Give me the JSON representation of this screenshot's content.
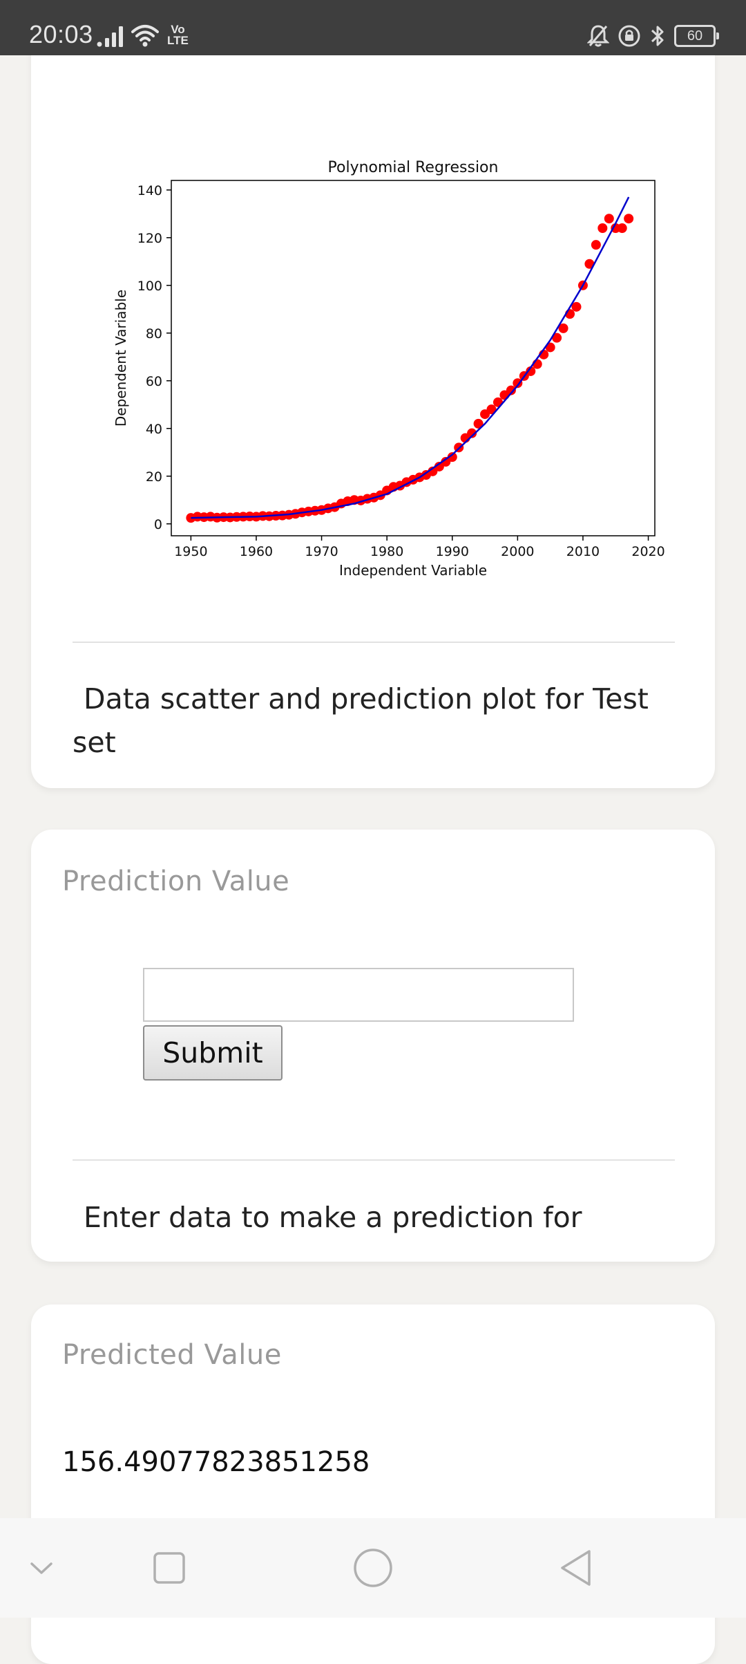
{
  "status_bar": {
    "time": "20:03",
    "volte_line1": "Vo",
    "volte_line2": "LTE",
    "battery": "60"
  },
  "chart_card": {
    "caption": "Data scatter and prediction plot for Test set"
  },
  "chart_data": {
    "type": "scatter",
    "title": "Polynomial Regression",
    "xlabel": "Independent Variable",
    "ylabel": "Dependent Variable",
    "xlim": [
      1947,
      2021
    ],
    "ylim": [
      -5,
      144
    ],
    "xticks": [
      1950,
      1960,
      1970,
      1980,
      1990,
      2000,
      2010,
      2020
    ],
    "yticks": [
      0,
      20,
      40,
      60,
      80,
      100,
      120,
      140
    ],
    "grid": false,
    "series": [
      {
        "type": "scatter",
        "color": "#ff0000",
        "x": [
          1950,
          1951,
          1952,
          1953,
          1954,
          1955,
          1956,
          1957,
          1958,
          1959,
          1960,
          1961,
          1962,
          1963,
          1964,
          1965,
          1966,
          1967,
          1968,
          1969,
          1970,
          1971,
          1972,
          1973,
          1974,
          1975,
          1976,
          1977,
          1978,
          1979,
          1980,
          1981,
          1982,
          1983,
          1984,
          1985,
          1986,
          1987,
          1988,
          1989,
          1990,
          1991,
          1992,
          1993,
          1994,
          1995,
          1996,
          1997,
          1998,
          1999,
          2000,
          2001,
          2002,
          2003,
          2004,
          2005,
          2006,
          2007,
          2008,
          2009,
          2010,
          2011,
          2012,
          2013,
          2014,
          2015,
          2016,
          2017
        ],
        "y": [
          2.5,
          3,
          2.8,
          3,
          2.6,
          2.8,
          2.7,
          2.9,
          3,
          3.1,
          3,
          3.3,
          3.2,
          3.4,
          3.5,
          3.8,
          4.2,
          4.8,
          5.2,
          5.5,
          5.8,
          6.5,
          7,
          8.5,
          9.5,
          10,
          9.8,
          10.5,
          11,
          12,
          14,
          15.5,
          16,
          17.5,
          18.5,
          19.5,
          20.5,
          22,
          24,
          26,
          28,
          32,
          36,
          38,
          42,
          46,
          48,
          51,
          54,
          56,
          59,
          62,
          64,
          67,
          71,
          74,
          78,
          82,
          88,
          91,
          100,
          109,
          117,
          124,
          128,
          124,
          124,
          128
        ]
      },
      {
        "type": "line",
        "color": "#0000cc",
        "x": [
          1950,
          1955,
          1960,
          1965,
          1970,
          1975,
          1980,
          1985,
          1990,
          1995,
          2000,
          2005,
          2010,
          2015,
          2017
        ],
        "y": [
          2.5,
          2.8,
          3.0,
          4.0,
          5.8,
          8.5,
          12.5,
          19.5,
          29,
          42,
          58,
          77,
          100,
          126,
          137
        ]
      }
    ]
  },
  "prediction_card": {
    "heading": "Prediction Value",
    "input_value": "",
    "input_placeholder": "",
    "submit_label": "Submit",
    "caption": "Enter data to make a prediction for"
  },
  "predicted_card": {
    "heading": "Predicted Value",
    "value": "156.49077823851258"
  },
  "nav_bar": {
    "icons": [
      "chevron-down-icon",
      "recents-square-icon",
      "home-circle-icon",
      "back-triangle-icon"
    ]
  }
}
